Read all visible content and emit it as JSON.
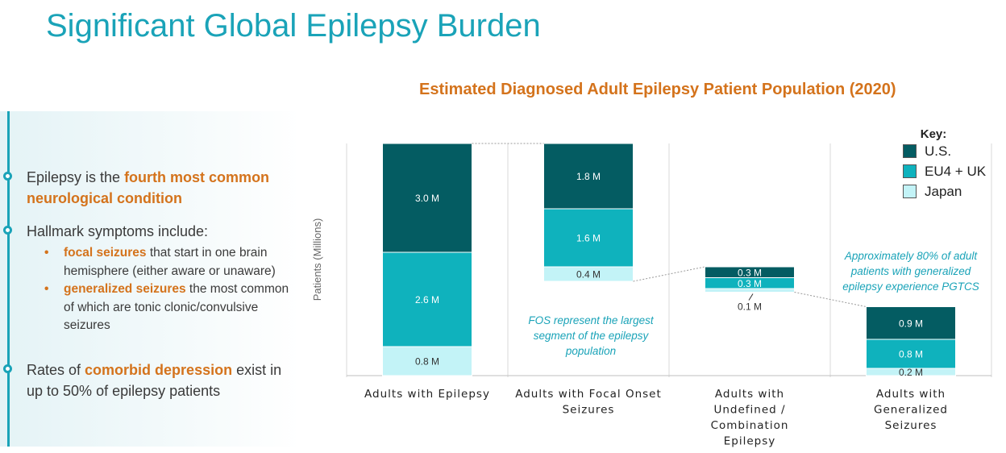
{
  "page_title": "Significant Global Epilepsy Burden",
  "left_panel": {
    "point1": {
      "prefix": "Epilepsy is the ",
      "highlight": "fourth most common neurological condition"
    },
    "point2": {
      "text": "Hallmark symptoms include:"
    },
    "sub_items": [
      {
        "bullet": "•",
        "highlight": "focal seizures",
        "text": " that start in one brain hemisphere (either aware or unaware)"
      },
      {
        "bullet": "•",
        "highlight": "generalized seizures",
        "text": " the most common of which are tonic clonic/convulsive seizures"
      }
    ],
    "point3": {
      "prefix": "Rates of ",
      "highlight": "comorbid depression",
      "suffix": " exist in up to 50% of epilepsy patients"
    }
  },
  "key": {
    "title": "Key:",
    "items": [
      {
        "label": "U.S.",
        "color": "#045c62"
      },
      {
        "label": "EU4 + UK",
        "color": "#0fb2bd"
      },
      {
        "label": "Japan",
        "color": "#c3f3f7"
      }
    ]
  },
  "annotations": {
    "fos": "FOS represent the largest segment of the epilepsy population",
    "pgtcs": "Approximately 80% of adult patients with generalized epilepsy experience PGTCS"
  },
  "chart_data": {
    "type": "bar",
    "stacked": true,
    "waterfall": true,
    "title": "Estimated Diagnosed Adult Epilepsy Patient Population (2020)",
    "ylabel": "Patients (Millions)",
    "xlabel": "",
    "categories": [
      "Adults with Epilepsy",
      "Adults with Focal Onset Seizures",
      "Adults with Undefined / Combination Epilepsy",
      "Adults with Generalized Seizures"
    ],
    "category_lines": [
      [
        "Adults with Epilepsy"
      ],
      [
        "Adults with Focal Onset",
        "Seizures"
      ],
      [
        "Adults with",
        "Undefined /",
        "Combination",
        "Epilepsy"
      ],
      [
        "Adults with",
        "Generalized",
        "Seizures"
      ]
    ],
    "base": [
      0,
      2.6,
      2.3,
      0
    ],
    "series": [
      {
        "name": "Japan",
        "values": [
          0.8,
          0.4,
          0.1,
          0.2
        ],
        "labels": [
          "0.8 M",
          "0.4 M",
          "0.1 M",
          "0.2 M"
        ],
        "color": "#c3f3f7"
      },
      {
        "name": "EU4 + UK",
        "values": [
          2.6,
          1.6,
          0.3,
          0.8
        ],
        "labels": [
          "2.6 M",
          "1.6 M",
          "0.3 M",
          "0.8 M"
        ],
        "color": "#0fb2bd"
      },
      {
        "name": "U.S.",
        "values": [
          3.0,
          1.8,
          0.3,
          0.9
        ],
        "labels": [
          "3.0 M",
          "1.8 M",
          "0.3 M",
          "0.9 M"
        ],
        "color": "#045c62"
      }
    ],
    "ylim": [
      0,
      6.6
    ],
    "grid": false,
    "legend": "top-right"
  }
}
